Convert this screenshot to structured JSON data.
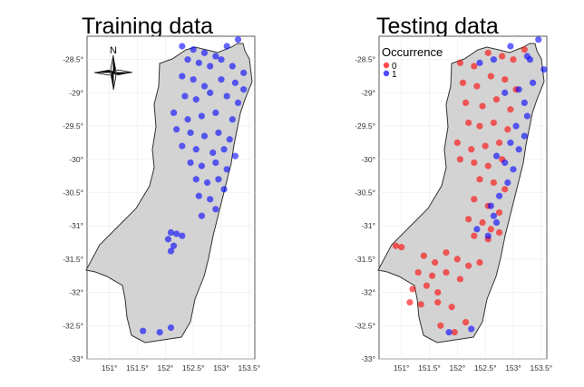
{
  "chart_data": [
    {
      "type": "scatter",
      "title": "Training data",
      "x_ticks": [
        "151°",
        "151.5°",
        "152°",
        "152.5°",
        "153°",
        "153.5°"
      ],
      "y_ticks": [
        "-28.5°",
        "-29°",
        "-29.5°",
        "-30°",
        "-30.5°",
        "-31°",
        "-31.5°",
        "-32°",
        "-32.5°",
        "-33°"
      ],
      "xlim": [
        150.6,
        153.6
      ],
      "ylim": [
        -33.0,
        -28.15
      ],
      "north_arrow_label": "N",
      "series": [
        {
          "color": "#0000ff",
          "points": [
            [
              152.3,
              -28.3
            ],
            [
              152.5,
              -28.35
            ],
            [
              152.7,
              -28.4
            ],
            [
              152.9,
              -28.45
            ],
            [
              153.1,
              -28.3
            ],
            [
              153.3,
              -28.2
            ],
            [
              152.4,
              -28.5
            ],
            [
              152.6,
              -28.55
            ],
            [
              152.8,
              -28.6
            ],
            [
              153.0,
              -28.5
            ],
            [
              153.2,
              -28.6
            ],
            [
              153.4,
              -28.7
            ],
            [
              152.3,
              -28.75
            ],
            [
              152.5,
              -28.8
            ],
            [
              152.7,
              -28.9
            ],
            [
              153.0,
              -28.8
            ],
            [
              153.25,
              -28.85
            ],
            [
              153.4,
              -28.95
            ],
            [
              152.35,
              -29.05
            ],
            [
              152.55,
              -29.1
            ],
            [
              152.8,
              -29.0
            ],
            [
              153.1,
              -29.05
            ],
            [
              153.3,
              -29.15
            ],
            [
              152.15,
              -29.3
            ],
            [
              152.4,
              -29.4
            ],
            [
              152.65,
              -29.35
            ],
            [
              152.9,
              -29.3
            ],
            [
              153.2,
              -29.4
            ],
            [
              152.2,
              -29.55
            ],
            [
              152.45,
              -29.6
            ],
            [
              152.7,
              -29.65
            ],
            [
              152.95,
              -29.6
            ],
            [
              153.15,
              -29.7
            ],
            [
              152.3,
              -29.8
            ],
            [
              152.55,
              -29.85
            ],
            [
              152.85,
              -29.9
            ],
            [
              153.05,
              -29.85
            ],
            [
              153.25,
              -29.95
            ],
            [
              152.45,
              -30.05
            ],
            [
              152.65,
              -30.1
            ],
            [
              152.9,
              -30.05
            ],
            [
              153.1,
              -30.15
            ],
            [
              152.55,
              -30.3
            ],
            [
              152.75,
              -30.35
            ],
            [
              152.95,
              -30.3
            ],
            [
              153.05,
              -30.45
            ],
            [
              152.6,
              -30.55
            ],
            [
              152.8,
              -30.6
            ],
            [
              152.9,
              -30.75
            ],
            [
              152.65,
              -30.85
            ],
            [
              152.1,
              -31.1
            ],
            [
              152.2,
              -31.12
            ],
            [
              152.3,
              -31.15
            ],
            [
              152.05,
              -31.2
            ],
            [
              152.15,
              -31.3
            ],
            [
              152.1,
              -31.38
            ],
            [
              151.6,
              -32.58
            ],
            [
              151.9,
              -32.6
            ],
            [
              152.1,
              -32.53
            ]
          ]
        }
      ]
    },
    {
      "type": "scatter",
      "title": "Testing data",
      "x_ticks": [
        "151°",
        "151.5°",
        "152°",
        "152.5°",
        "153°",
        "153.5°"
      ],
      "y_ticks": [
        "-28.5°",
        "-29°",
        "-29.5°",
        "-30°",
        "-30.5°",
        "-31°",
        "-31.5°",
        "-32°",
        "-32.5°",
        "-33°"
      ],
      "xlim": [
        150.6,
        153.6
      ],
      "ylim": [
        -33.0,
        -28.15
      ],
      "legend": {
        "title": "Occurrence",
        "position": "top-left"
      },
      "series": [
        {
          "name": "0",
          "color": "#ff0000",
          "points": [
            [
              152.05,
              -28.55
            ],
            [
              152.3,
              -28.6
            ],
            [
              152.55,
              -28.4
            ],
            [
              152.8,
              -28.45
            ],
            [
              153.0,
              -28.5
            ],
            [
              153.2,
              -28.35
            ],
            [
              152.1,
              -28.85
            ],
            [
              152.35,
              -28.9
            ],
            [
              152.6,
              -28.75
            ],
            [
              152.85,
              -28.8
            ],
            [
              153.05,
              -28.95
            ],
            [
              152.15,
              -29.15
            ],
            [
              152.45,
              -29.2
            ],
            [
              152.7,
              -29.1
            ],
            [
              152.95,
              -29.25
            ],
            [
              152.2,
              -29.45
            ],
            [
              152.4,
              -29.5
            ],
            [
              152.65,
              -29.45
            ],
            [
              152.9,
              -29.55
            ],
            [
              152.0,
              -29.75
            ],
            [
              152.25,
              -29.85
            ],
            [
              152.5,
              -29.8
            ],
            [
              152.75,
              -29.75
            ],
            [
              152.05,
              -30.0
            ],
            [
              152.3,
              -30.05
            ],
            [
              152.55,
              -30.1
            ],
            [
              152.8,
              -30.0
            ],
            [
              152.4,
              -30.3
            ],
            [
              152.65,
              -30.35
            ],
            [
              152.85,
              -30.45
            ],
            [
              152.3,
              -30.6
            ],
            [
              152.55,
              -30.7
            ],
            [
              152.75,
              -30.8
            ],
            [
              152.2,
              -30.9
            ],
            [
              152.45,
              -30.95
            ],
            [
              152.6,
              -31.05
            ],
            [
              152.3,
              -31.15
            ],
            [
              152.55,
              -31.2
            ],
            [
              152.75,
              -31.1
            ],
            [
              150.9,
              -31.3
            ],
            [
              151.0,
              -31.32
            ],
            [
              151.4,
              -31.45
            ],
            [
              151.6,
              -31.55
            ],
            [
              151.8,
              -31.4
            ],
            [
              152.0,
              -31.5
            ],
            [
              152.2,
              -31.6
            ],
            [
              152.4,
              -31.55
            ],
            [
              151.3,
              -31.7
            ],
            [
              151.55,
              -31.75
            ],
            [
              151.8,
              -31.7
            ],
            [
              152.05,
              -31.8
            ],
            [
              151.2,
              -31.95
            ],
            [
              151.45,
              -31.9
            ],
            [
              151.65,
              -32.0
            ],
            [
              151.15,
              -32.15
            ],
            [
              151.35,
              -32.18
            ],
            [
              151.65,
              -32.15
            ],
            [
              151.9,
              -32.22
            ],
            [
              151.7,
              -32.5
            ],
            [
              151.95,
              -32.6
            ],
            [
              152.15,
              -32.45
            ]
          ]
        },
        {
          "name": "1",
          "color": "#0000ff",
          "points": [
            [
              152.95,
              -28.3
            ],
            [
              153.25,
              -28.45
            ],
            [
              153.45,
              -28.2
            ],
            [
              153.3,
              -28.5
            ],
            [
              152.65,
              -28.5
            ],
            [
              153.55,
              -28.65
            ],
            [
              153.35,
              -28.85
            ],
            [
              152.4,
              -28.55
            ],
            [
              153.1,
              -28.95
            ],
            [
              153.2,
              -29.15
            ],
            [
              152.85,
              -29.0
            ],
            [
              153.25,
              -29.35
            ],
            [
              153.05,
              -29.5
            ],
            [
              153.2,
              -29.65
            ],
            [
              152.95,
              -29.75
            ],
            [
              153.1,
              -29.85
            ],
            [
              152.7,
              -29.95
            ],
            [
              152.85,
              -30.05
            ],
            [
              153.0,
              -30.15
            ],
            [
              152.9,
              -30.35
            ],
            [
              152.75,
              -30.55
            ],
            [
              152.6,
              -30.7
            ],
            [
              152.65,
              -30.85
            ],
            [
              152.7,
              -30.95
            ],
            [
              152.35,
              -31.05
            ],
            [
              152.55,
              -31.15
            ],
            [
              152.25,
              -32.55
            ],
            [
              151.85,
              -32.6
            ]
          ]
        }
      ]
    }
  ]
}
